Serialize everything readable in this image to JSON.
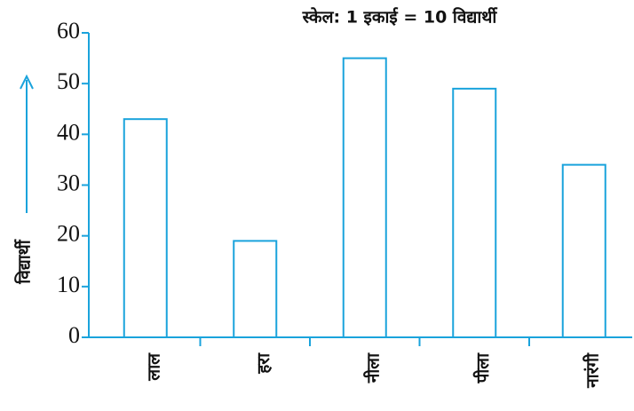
{
  "chart_data": {
    "type": "bar",
    "title": "स्केल: 1 इकाई = 10 विद्यार्थी",
    "y_label": "विद्यार्थी",
    "categories": [
      "लाल",
      "हरा",
      "नीला",
      "पीला",
      "नारंगी"
    ],
    "values": [
      43,
      19,
      55,
      49,
      34
    ],
    "color": "#1aa3dc",
    "ylim": [
      0,
      60
    ],
    "yticks": [
      0,
      10,
      20,
      30,
      40,
      50,
      60
    ],
    "grid": false
  }
}
